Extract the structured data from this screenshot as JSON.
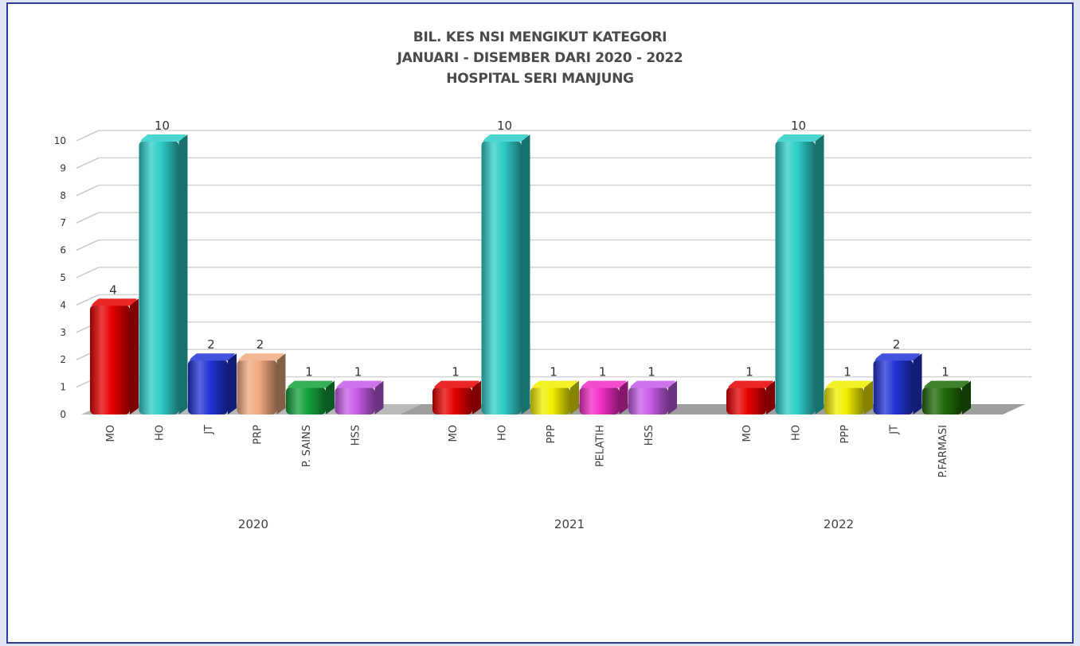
{
  "chart_data": {
    "type": "bar",
    "title": [
      "BIL. KES NSI MENGIKUT KATEGORI",
      "JANUARI - DISEMBER DARI 2020 - 2022",
      "HOSPITAL SERI MANJUNG"
    ],
    "ylim": [
      0,
      10
    ],
    "yticks": [
      0,
      1,
      2,
      3,
      4,
      5,
      6,
      7,
      8,
      9,
      10
    ],
    "grid": true,
    "style": "3d-cylinder",
    "groups": [
      {
        "name": "2020",
        "bars": [
          {
            "category": "MO",
            "value": 4,
            "color": "#e60000"
          },
          {
            "category": "HO",
            "value": 10,
            "color": "#2ecdc8"
          },
          {
            "category": "JT",
            "value": 2,
            "color": "#2233d6"
          },
          {
            "category": "PRP",
            "value": 2,
            "color": "#f2aa80"
          },
          {
            "category": "P. SAINS",
            "value": 1,
            "color": "#12a23c"
          },
          {
            "category": "HSS",
            "value": 1,
            "color": "#c55ce8"
          }
        ]
      },
      {
        "name": "2021",
        "bars": [
          {
            "category": "MO",
            "value": 1,
            "color": "#e60000"
          },
          {
            "category": "HO",
            "value": 10,
            "color": "#2ecdc8"
          },
          {
            "category": "PPP",
            "value": 1,
            "color": "#f2ee00"
          },
          {
            "category": "PELATIH",
            "value": 1,
            "color": "#f22cc5"
          },
          {
            "category": "HSS",
            "value": 1,
            "color": "#c55ce8"
          }
        ]
      },
      {
        "name": "2022",
        "bars": [
          {
            "category": "MO",
            "value": 1,
            "color": "#e60000"
          },
          {
            "category": "HO",
            "value": 10,
            "color": "#2ecdc8"
          },
          {
            "category": "PPP",
            "value": 1,
            "color": "#f2ee00"
          },
          {
            "category": "JT",
            "value": 2,
            "color": "#2233d6"
          },
          {
            "category": "P.FARMASI",
            "value": 1,
            "color": "#1f6a08"
          }
        ]
      }
    ]
  }
}
